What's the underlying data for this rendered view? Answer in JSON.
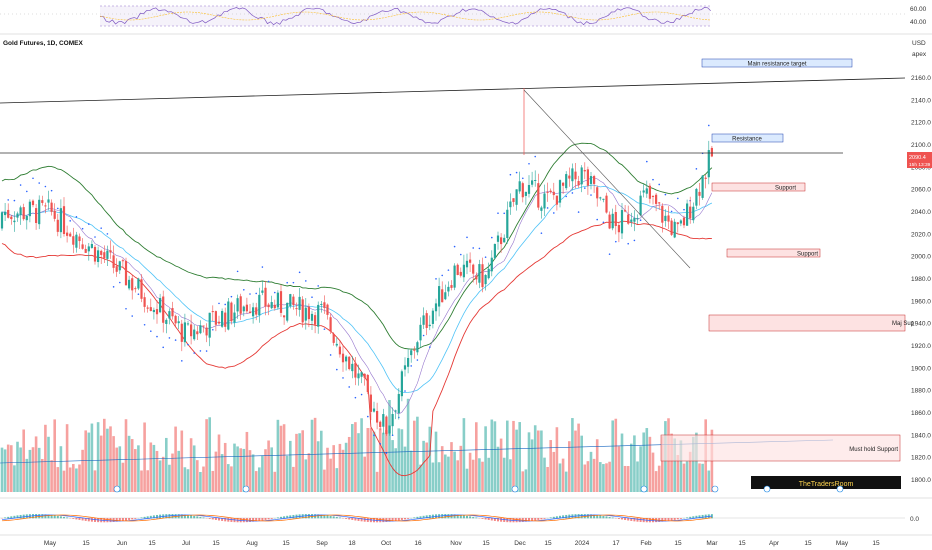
{
  "header": {
    "title": "Gold Futures, 1D, COMEX"
  },
  "price_axis": {
    "currency": "USD",
    "scale_mode": "apex"
  },
  "current_price": {
    "value": "2090.4",
    "countdown": "15h 13:39"
  },
  "rsi_ticks": [
    "60.00",
    "40.00"
  ],
  "macd_ticks": [
    "0.0"
  ],
  "watermark_label": "TheTradersRoom",
  "annotations": {
    "main_resistance": "Main resistance target",
    "resistance": "Resistance",
    "support_1": "Support",
    "support_2": "Support",
    "maj_support": "Maj Sup",
    "must_hold": "Must hold Support"
  },
  "colors": {
    "up": "#26a69a",
    "down": "#ef5350",
    "bb_upper": "#2e7d32",
    "bb_lower": "#e53935",
    "ma": "#4fc3f7",
    "ma2": "#9575cd",
    "psar": "#2962ff",
    "resistance_box": "#dbeafe",
    "support_box": "#fde2e2"
  },
  "chart_data": {
    "type": "candlestick",
    "title": "Gold Futures, 1D, COMEX",
    "x_tick_labels": [
      "May",
      "15",
      "Jun",
      "15",
      "Jul",
      "15",
      "Aug",
      "15",
      "Sep",
      "18",
      "Oct",
      "16",
      "Nov",
      "15",
      "Dec",
      "15",
      "2024",
      "17",
      "Feb",
      "15",
      "Mar",
      "15",
      "Apr",
      "15",
      "May",
      "15"
    ],
    "y_ticks": [
      2160,
      2140,
      2120,
      2100,
      2080,
      2060,
      2040,
      2020,
      2000,
      1980,
      1960,
      1940,
      1920,
      1900,
      1880,
      1860,
      1840,
      1820,
      1800
    ],
    "ylim": [
      1793,
      2177
    ],
    "close_estimates": [
      {
        "t": "May",
        "close": 2040
      },
      {
        "t": "Jun",
        "close": 1985
      },
      {
        "t": "Jul",
        "close": 1930
      },
      {
        "t": "Aug",
        "close": 1960
      },
      {
        "t": "Sep",
        "close": 1950
      },
      {
        "t": "Oct",
        "close": 1845
      },
      {
        "t": "Oct 16",
        "close": 1930
      },
      {
        "t": "Nov",
        "close": 1990
      },
      {
        "t": "Nov 15",
        "close": 1980
      },
      {
        "t": "Dec",
        "close": 2065
      },
      {
        "t": "Dec 15",
        "close": 2050
      },
      {
        "t": "2024",
        "close": 2075
      },
      {
        "t": "Jan 17",
        "close": 2025
      },
      {
        "t": "Feb",
        "close": 2055
      },
      {
        "t": "Feb 15",
        "close": 2020
      },
      {
        "t": "Mar",
        "close": 2090.4
      }
    ],
    "levels": [
      {
        "name": "Resistance",
        "price": 2095
      },
      {
        "name": "Support",
        "price": 2063
      },
      {
        "name": "Support",
        "price": 2003
      },
      {
        "name": "Maj Sup",
        "price": 1942
      },
      {
        "name": "Must hold Support",
        "price": 1828
      },
      {
        "name": "Main resistance target",
        "price": 2172
      }
    ],
    "trendline": {
      "from": {
        "price": 2145
      },
      "to": {
        "price": 2160
      }
    },
    "indicators": [
      "RSI",
      "Bollinger Bands",
      "Moving Average",
      "Parabolic SAR",
      "Volume",
      "MACD"
    ]
  }
}
